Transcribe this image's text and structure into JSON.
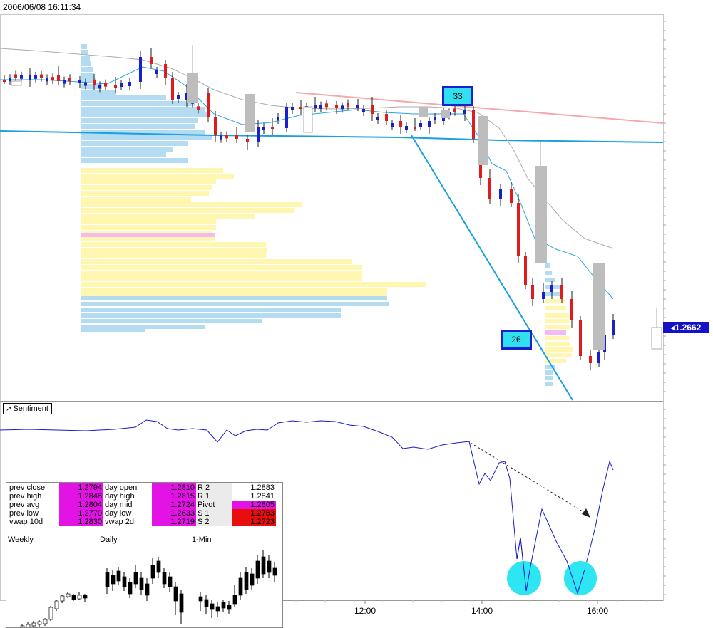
{
  "timestamp": "2006/06/08 16:11:34",
  "sentiment_label": "Sentiment",
  "price_tag": "1.2662",
  "annotation_top": "33",
  "annotation_bottom": "26",
  "colors": {
    "up": "#1720cc",
    "down": "#e01b1b",
    "vwap": "#2aa6d8",
    "sentiment": "#1a1ac8",
    "profile_blue": "#b3dcf2",
    "profile_yellow": "#fff7b0",
    "profile_pink": "#f5b9f0",
    "downtrend": "#f5a8a8",
    "gray_bar": "#bdbdbd"
  },
  "info": {
    "rows": [
      {
        "l1": "prev close",
        "v1": "1.2794",
        "l2": "day open",
        "v2": "1.2810",
        "l3": "R 2",
        "v3": "1.2883",
        "c3": "white"
      },
      {
        "l1": "prev high",
        "v1": "1.2848",
        "l2": "day high",
        "v2": "1.2815",
        "l3": "R 1",
        "v3": "1.2841",
        "c3": "white"
      },
      {
        "l1": "prev avg",
        "v1": "1.2804",
        "l2": "day mid",
        "v2": "1.2724",
        "l3": "Pivot",
        "v3": "1.2805",
        "c3": "magenta"
      },
      {
        "l1": "prev low",
        "v1": "1.2770",
        "l2": "day low",
        "v2": "1.2633",
        "l3": "S 1",
        "v3": "1.2763",
        "c3": "red"
      },
      {
        "l1": "vwap 10d",
        "v1": "1.2830",
        "l2": "vwap 2d",
        "v2": "1.2719",
        "l3": "S 2",
        "v3": "1.2723",
        "c3": "red"
      }
    ],
    "mini_titles": [
      "Weekly",
      "Daily",
      "1-Min"
    ]
  },
  "chart_data": {
    "type": "candlestick",
    "title": "",
    "x_ticks": [
      "12:00",
      "14:00",
      "16:00"
    ],
    "last_price": 1.2662,
    "series_main": {
      "candles": [
        {
          "t": 0,
          "o": 1.281,
          "h": 1.2813,
          "l": 1.2803,
          "c": 1.2806
        },
        {
          "t": 1,
          "o": 1.2806,
          "h": 1.2812,
          "l": 1.2802,
          "c": 1.2809
        },
        {
          "t": 2,
          "o": 1.2809,
          "h": 1.2815,
          "l": 1.2805,
          "c": 1.2807
        },
        {
          "t": 3,
          "o": 1.2807,
          "h": 1.2812,
          "l": 1.2803,
          "c": 1.281
        },
        {
          "t": 4,
          "o": 1.281,
          "h": 1.2814,
          "l": 1.2805,
          "c": 1.2806
        },
        {
          "t": 5,
          "o": 1.2806,
          "h": 1.2809,
          "l": 1.2802,
          "c": 1.2804
        },
        {
          "t": 6,
          "o": 1.2804,
          "h": 1.2808,
          "l": 1.2801,
          "c": 1.2806
        },
        {
          "t": 7,
          "o": 1.2806,
          "h": 1.281,
          "l": 1.2802,
          "c": 1.2805
        }
      ]
    },
    "series_sentiment": {
      "name": "Sentiment"
    }
  }
}
